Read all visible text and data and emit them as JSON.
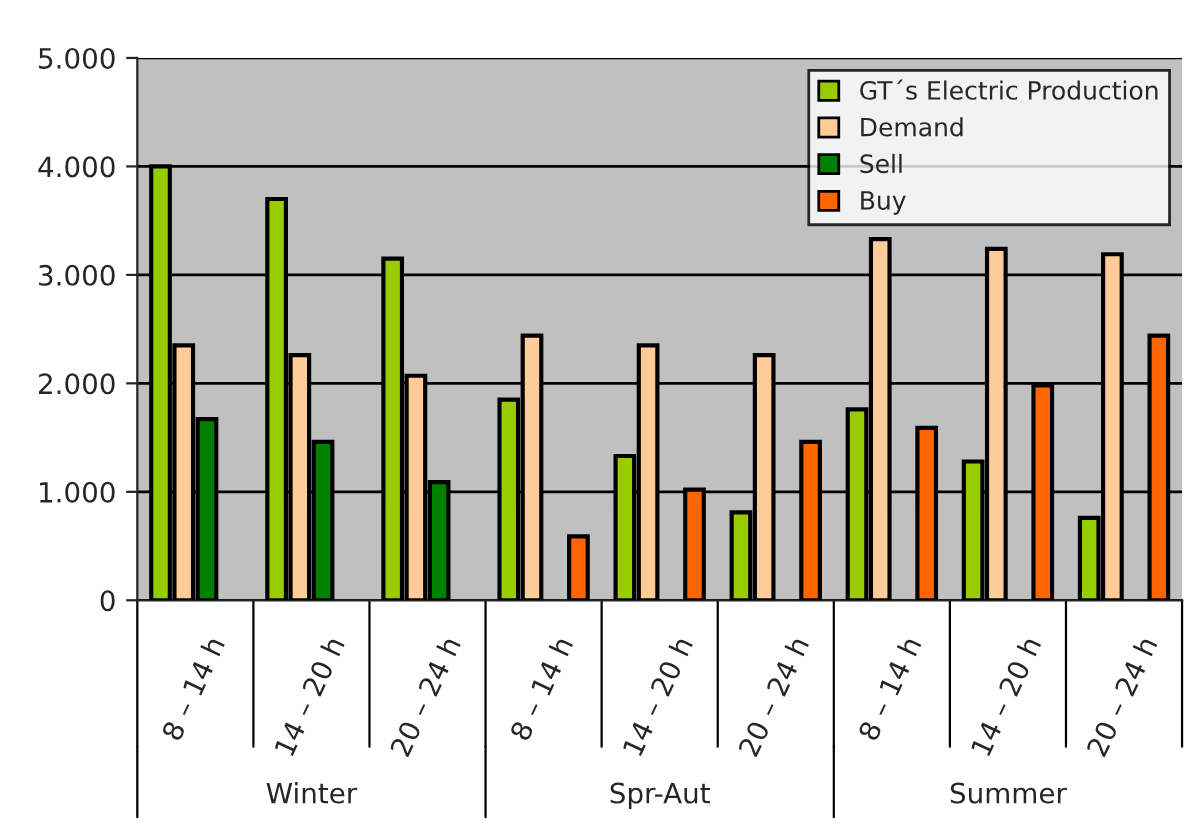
{
  "chart_data": {
    "type": "bar",
    "categories": [
      "8 – 14 h",
      "14 – 20 h",
      "20 – 24 h",
      "8 – 14 h",
      "14 – 20 h",
      "20 – 24 h",
      "8 – 14 h",
      "14 – 20 h",
      "20 – 24 h"
    ],
    "series": [
      {
        "name": "GT´s Electric Production",
        "color": "#99cc00",
        "values": [
          4000,
          3700,
          3150,
          1850,
          1330,
          810,
          1760,
          1280,
          760
        ]
      },
      {
        "name": "Demand",
        "color": "#ffcc99",
        "values": [
          2350,
          2260,
          2070,
          2440,
          2350,
          2260,
          3330,
          3240,
          3190
        ]
      },
      {
        "name": "Sell",
        "color": "#008000",
        "values": [
          1670,
          1460,
          1090,
          null,
          null,
          null,
          null,
          null,
          null
        ]
      },
      {
        "name": "Buy",
        "color": "#ff6600",
        "values": [
          null,
          null,
          null,
          590,
          1020,
          1460,
          1590,
          1980,
          2440
        ]
      }
    ],
    "annotations": [
      "Winter",
      "Spr-Aut",
      "Summer"
    ],
    "ylim": [
      0,
      5000
    ],
    "yticks": [
      0,
      {
        "value": 1000,
        "label": "1.000"
      },
      {
        "value": 2000,
        "label": "2.000"
      },
      {
        "value": 3000,
        "label": "3.000"
      },
      {
        "value": 4000,
        "label": "4.000"
      },
      {
        "value": 5000,
        "label": "5.000"
      }
    ],
    "grid": "y",
    "legend": "top right"
  }
}
